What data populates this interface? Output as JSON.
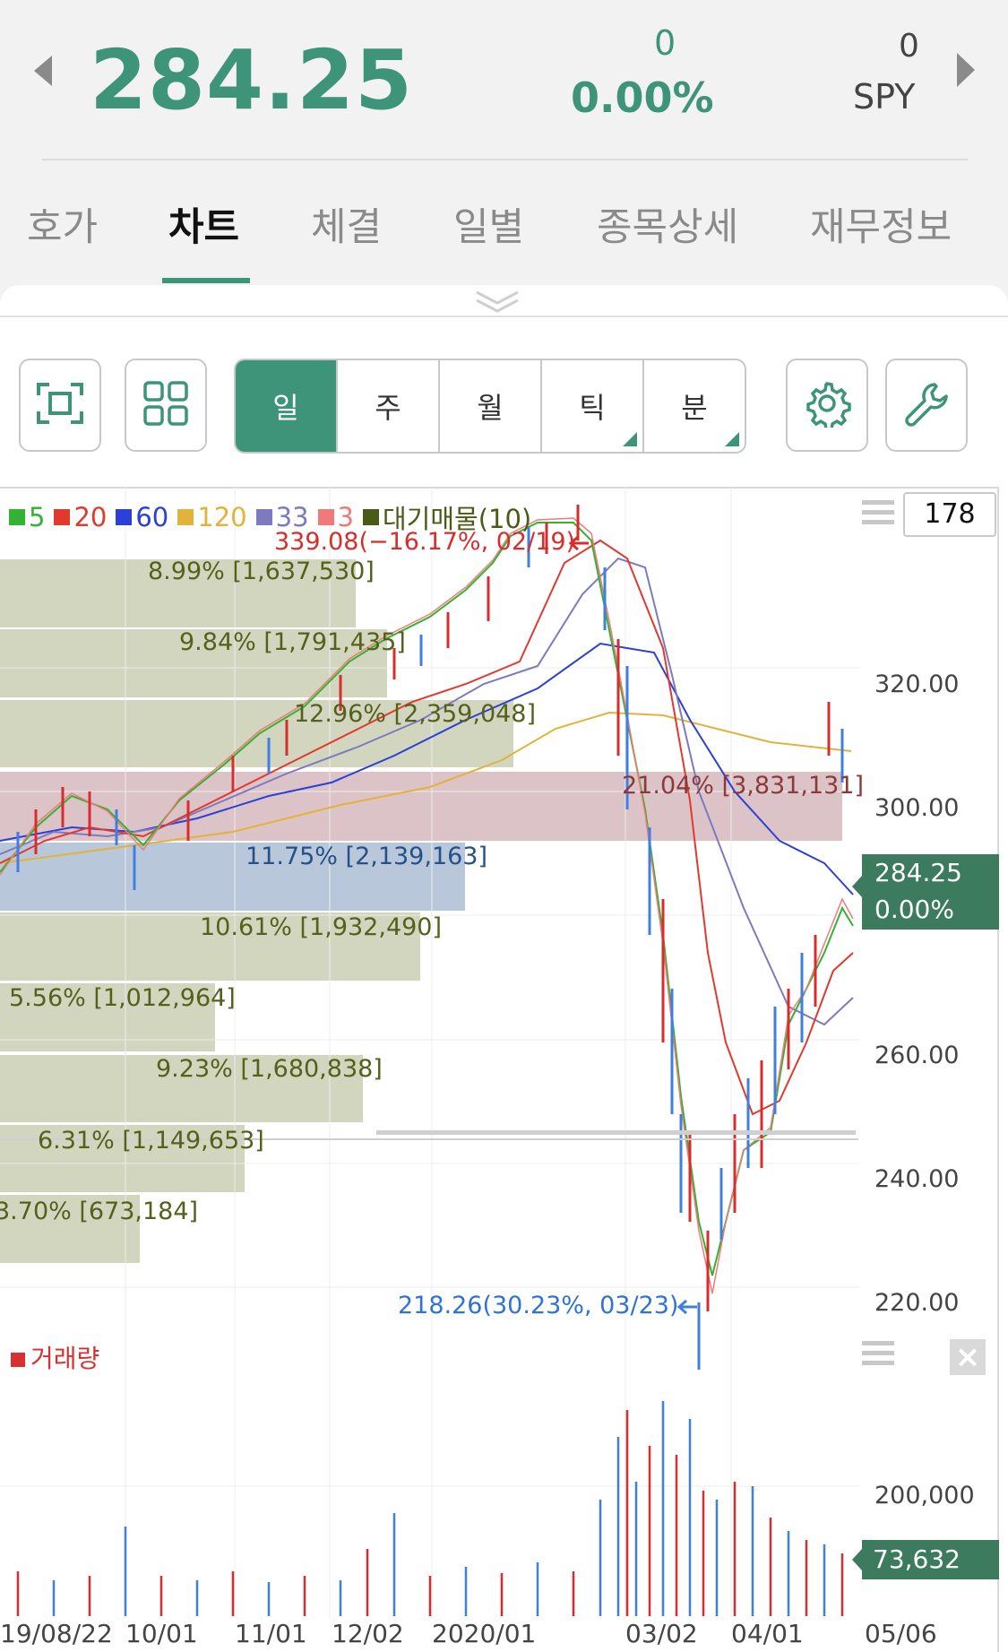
{
  "header": {
    "price": "284.25",
    "change": "0",
    "change_pct": "0.00%",
    "volume": "0",
    "symbol": "SPY"
  },
  "tabs": [
    "호가",
    "차트",
    "체결",
    "일별",
    "종목상세",
    "재무정보"
  ],
  "active_tab": "차트",
  "toolbar": {
    "periods": [
      "일",
      "주",
      "월",
      "틱",
      "분"
    ],
    "active_period": "일"
  },
  "chart": {
    "candle_count": "178",
    "legend": [
      {
        "label": "5",
        "color": "#33b233"
      },
      {
        "label": "20",
        "color": "#e03a2f"
      },
      {
        "label": "60",
        "color": "#2c3fd8"
      },
      {
        "label": "120",
        "color": "#e2b33c"
      },
      {
        "label": "33",
        "color": "#7e7ac0"
      },
      {
        "label": "3",
        "color": "#f07a7a"
      },
      {
        "label": "대기매물(10)",
        "color": "#4a5a17"
      }
    ],
    "high_annotation": "339.08(−16.17%, 02/19)",
    "low_annotation": "218.26(30.23%, 03/23)",
    "y_ticks": [
      "320.00",
      "300.00",
      "260.00",
      "240.00",
      "220.00"
    ],
    "last_price": "284.25",
    "last_pct": "0.00%",
    "volume_profile": [
      {
        "label": "8.99% [1,637,530]"
      },
      {
        "label": "9.84% [1,791,435]"
      },
      {
        "label": "12.96% [2,359,048]"
      },
      {
        "label": "21.04% [3,831,131]"
      },
      {
        "label": "11.75% [2,139,163]"
      },
      {
        "label": "10.61% [1,932,490]"
      },
      {
        "label": "5.56% [1,012,964]"
      },
      {
        "label": "9.23% [1,680,838]"
      },
      {
        "label": "6.31% [1,149,653]"
      },
      {
        "label": "3.70% [673,184]"
      }
    ]
  },
  "volume_panel": {
    "title": "거래량",
    "y_tick": "200,000",
    "last_volume": "73,632",
    "close_glyph": "×"
  },
  "x_labels": [
    "19/08/22",
    "10/01",
    "11/01",
    "12/02",
    "2020/01",
    "03/02",
    "04/01",
    "05/06"
  ],
  "colors": {
    "accent": "#3d9479",
    "last_badge": "#3c7b5d",
    "vp_default": "#d2d6bf",
    "vp_resistance": "#dcc3c8",
    "vp_current": "#b8c8da"
  },
  "icons": [
    "chevron-left-icon",
    "chevron-right-icon",
    "fullscreen-icon",
    "grid-layout-icon",
    "settings-gear-icon",
    "wrench-icon",
    "menu-icon",
    "close-icon"
  ]
}
